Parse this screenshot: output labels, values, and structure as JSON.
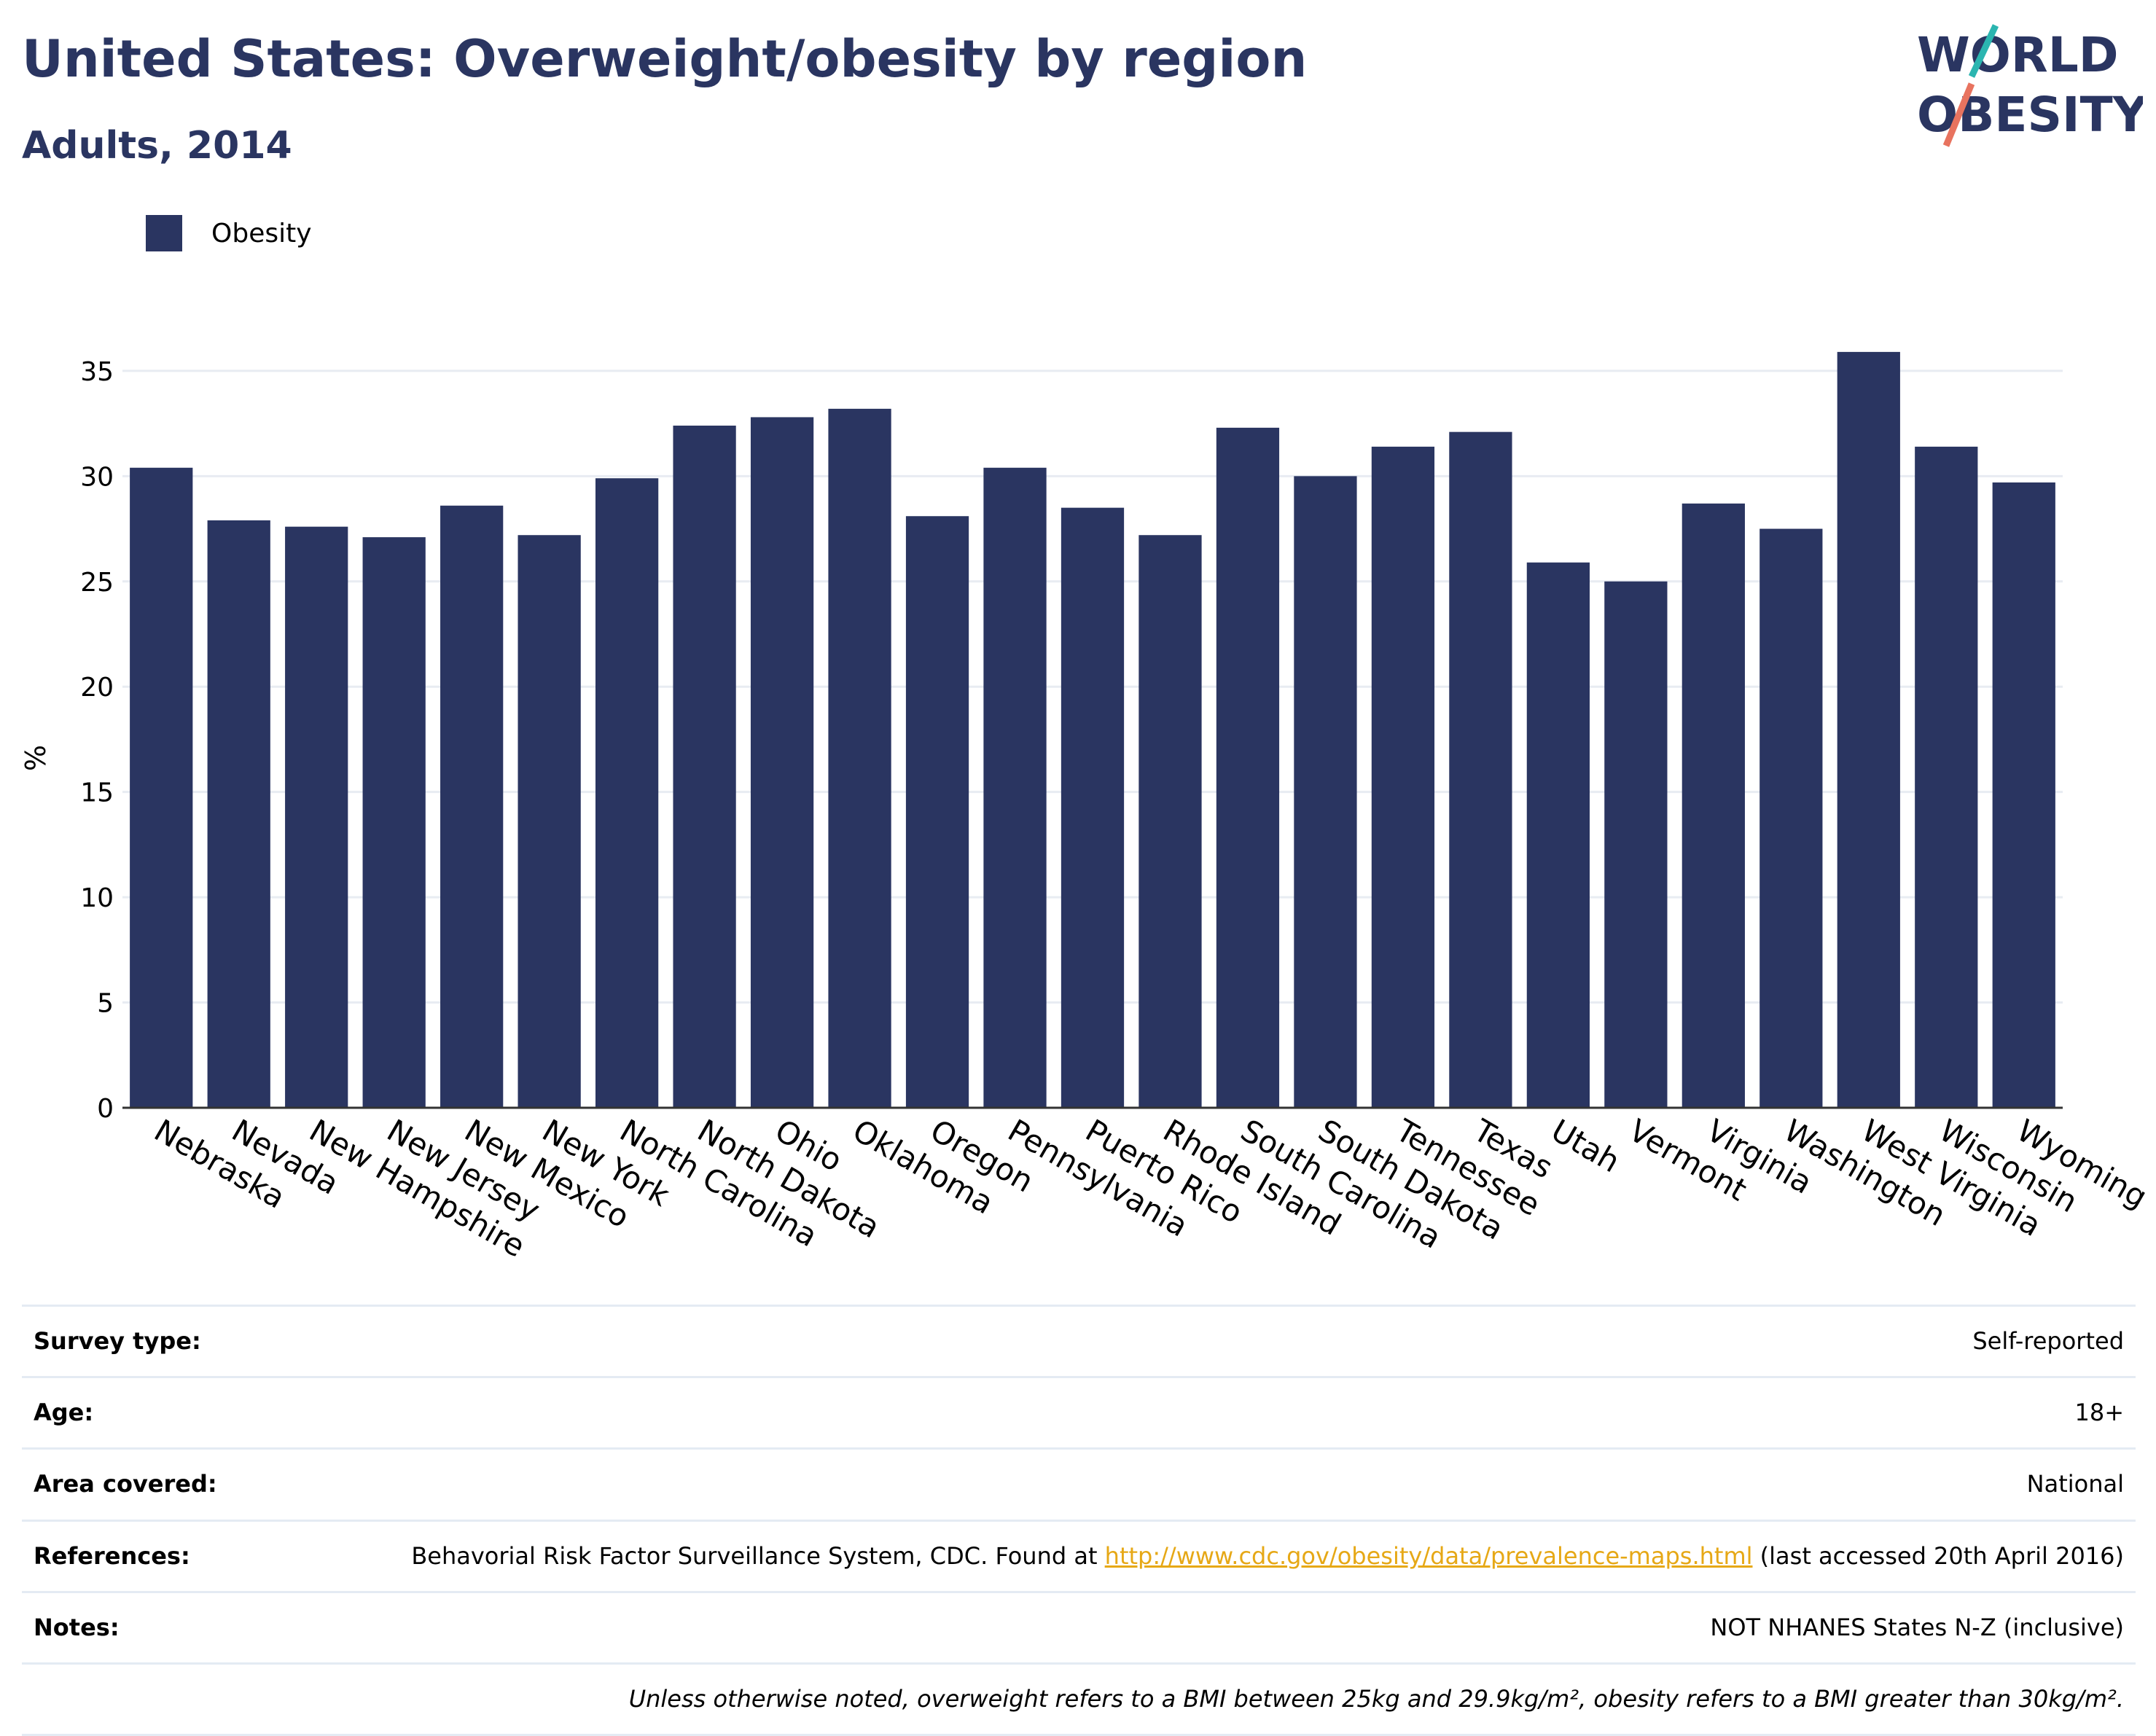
{
  "header": {
    "title": "United States: Overweight/obesity by region",
    "subtitle": "Adults, 2014"
  },
  "logo": {
    "line1": "WORLD",
    "line2": "OBESITY",
    "colors": {
      "text": "#2a3561",
      "slash_top": "#2bb5b0",
      "slash_bottom": "#e8735f"
    }
  },
  "chart_data": {
    "type": "bar",
    "title": "United States: Overweight/obesity by region",
    "subtitle": "Adults, 2014",
    "xlabel": "",
    "ylabel": "%",
    "ylim": [
      0,
      36
    ],
    "yticks": [
      0,
      5,
      10,
      15,
      20,
      25,
      30,
      35
    ],
    "grid": true,
    "legend_position": "top-left",
    "categories": [
      "Nebraska",
      "Nevada",
      "New Hampshire",
      "New Jersey",
      "New Mexico",
      "New York",
      "North Carolina",
      "North Dakota",
      "Ohio",
      "Oklahoma",
      "Oregon",
      "Pennsylvania",
      "Puerto Rico",
      "Rhode Island",
      "South Carolina",
      "South Dakota",
      "Tennessee",
      "Texas",
      "Utah",
      "Vermont",
      "Virginia",
      "Washington",
      "West Virginia",
      "Wisconsin",
      "Wyoming"
    ],
    "series": [
      {
        "name": "Obesity",
        "color": "#2a3561",
        "values": [
          30.4,
          27.9,
          27.6,
          27.1,
          28.6,
          27.2,
          29.9,
          32.4,
          32.8,
          33.2,
          28.1,
          30.4,
          28.5,
          27.2,
          32.3,
          30.0,
          31.4,
          32.1,
          25.9,
          25.0,
          28.7,
          27.5,
          35.9,
          31.4,
          29.7
        ]
      }
    ]
  },
  "info": {
    "survey_type": {
      "label": "Survey type:",
      "value": "Self-reported"
    },
    "age": {
      "label": "Age:",
      "value": "18+"
    },
    "area": {
      "label": "Area covered:",
      "value": "National"
    },
    "references": {
      "label": "References:",
      "prefix": "Behavorial Risk Factor Surveillance System, CDC. Found at ",
      "link": "http://www.cdc.gov/obesity/data/prevalence-maps.html",
      "suffix": " (last accessed 20th April 2016)"
    },
    "notes": {
      "label": "Notes:",
      "value": "NOT NHANES States N-Z (inclusive)"
    },
    "footnote": "Unless otherwise noted, overweight refers to a BMI between 25kg and 29.9kg/m², obesity refers to a BMI greater than 30kg/m²."
  }
}
